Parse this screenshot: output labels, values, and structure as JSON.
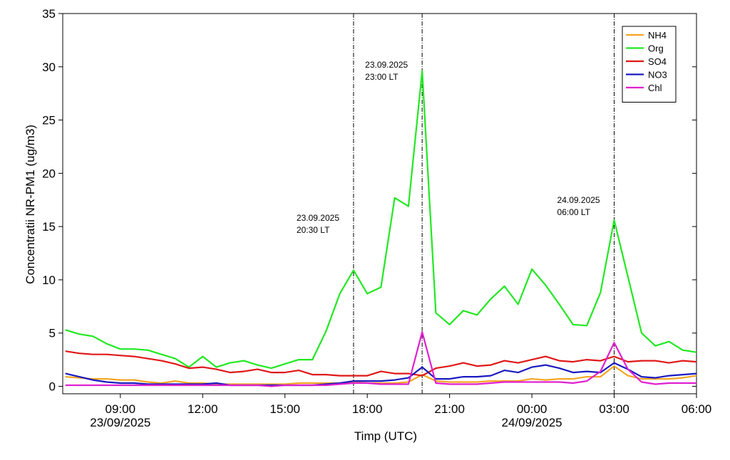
{
  "chart_data": {
    "type": "line",
    "xlabel": "Timp (UTC)",
    "ylabel": "Concentratii NR-PM1  (ug/m3)",
    "x": [
      "2025-09-23 07:00",
      "2025-09-23 07:30",
      "2025-09-23 08:00",
      "2025-09-23 08:30",
      "2025-09-23 09:00",
      "2025-09-23 09:30",
      "2025-09-23 10:00",
      "2025-09-23 10:30",
      "2025-09-23 11:00",
      "2025-09-23 11:30",
      "2025-09-23 12:00",
      "2025-09-23 12:30",
      "2025-09-23 13:00",
      "2025-09-23 13:30",
      "2025-09-23 14:00",
      "2025-09-23 14:30",
      "2025-09-23 15:00",
      "2025-09-23 15:30",
      "2025-09-23 16:00",
      "2025-09-23 16:30",
      "2025-09-23 17:00",
      "2025-09-23 17:30",
      "2025-09-23 18:00",
      "2025-09-23 18:30",
      "2025-09-23 19:00",
      "2025-09-23 19:30",
      "2025-09-23 20:00",
      "2025-09-23 20:30",
      "2025-09-23 21:00",
      "2025-09-23 21:30",
      "2025-09-23 22:00",
      "2025-09-23 22:30",
      "2025-09-23 23:00",
      "2025-09-23 23:30",
      "2025-09-24 00:00",
      "2025-09-24 00:30",
      "2025-09-24 01:00",
      "2025-09-24 01:30",
      "2025-09-24 02:00",
      "2025-09-24 02:30",
      "2025-09-24 03:00",
      "2025-09-24 03:30",
      "2025-09-24 04:00",
      "2025-09-24 04:30",
      "2025-09-24 05:00",
      "2025-09-24 05:30",
      "2025-09-24 06:00"
    ],
    "series": [
      {
        "name": "NH4",
        "color": "#f5a623",
        "values": [
          0.9,
          0.8,
          0.7,
          0.7,
          0.6,
          0.6,
          0.4,
          0.3,
          0.5,
          0.3,
          0.3,
          0.2,
          0.2,
          0.2,
          0.2,
          0.2,
          0.2,
          0.3,
          0.3,
          0.3,
          0.3,
          0.4,
          0.3,
          0.3,
          0.3,
          0.4,
          1.1,
          0.5,
          0.4,
          0.4,
          0.4,
          0.5,
          0.5,
          0.5,
          0.7,
          0.6,
          0.7,
          0.7,
          0.9,
          0.9,
          1.9,
          1.0,
          0.7,
          0.7,
          0.7,
          0.8,
          1.0
        ]
      },
      {
        "name": "Org",
        "color": "#22e822",
        "values": [
          5.3,
          4.9,
          4.7,
          4.0,
          3.5,
          3.5,
          3.4,
          3.0,
          2.6,
          1.8,
          2.8,
          1.8,
          2.2,
          2.4,
          2.0,
          1.7,
          2.1,
          2.5,
          2.5,
          5.2,
          8.7,
          10.9,
          8.7,
          9.3,
          17.7,
          16.9,
          29.6,
          6.9,
          5.8,
          7.1,
          6.7,
          8.2,
          9.4,
          7.7,
          11.0,
          9.5,
          7.7,
          5.8,
          5.7,
          8.8,
          15.6,
          10.3,
          5.0,
          3.8,
          4.2,
          3.4,
          3.2
        ]
      },
      {
        "name": "SO4",
        "color": "#e01818",
        "values": [
          3.3,
          3.1,
          3.0,
          3.0,
          2.9,
          2.8,
          2.6,
          2.4,
          2.1,
          1.7,
          1.8,
          1.6,
          1.3,
          1.4,
          1.6,
          1.3,
          1.3,
          1.5,
          1.1,
          1.1,
          1.0,
          1.0,
          1.0,
          1.4,
          1.2,
          1.2,
          1.0,
          1.7,
          1.9,
          2.2,
          1.9,
          2.0,
          2.4,
          2.2,
          2.5,
          2.8,
          2.4,
          2.3,
          2.5,
          2.4,
          2.8,
          2.3,
          2.4,
          2.4,
          2.2,
          2.4,
          2.3
        ]
      },
      {
        "name": "NO3",
        "color": "#1a1ac0",
        "values": [
          1.2,
          0.9,
          0.6,
          0.4,
          0.3,
          0.3,
          0.2,
          0.2,
          0.2,
          0.2,
          0.2,
          0.3,
          0.1,
          0.1,
          0.1,
          0.1,
          0.1,
          0.1,
          0.1,
          0.2,
          0.3,
          0.5,
          0.5,
          0.5,
          0.6,
          0.8,
          1.8,
          0.7,
          0.7,
          0.9,
          0.9,
          1.0,
          1.5,
          1.3,
          1.8,
          2.0,
          1.7,
          1.3,
          1.4,
          1.3,
          2.2,
          1.6,
          0.9,
          0.8,
          1.0,
          1.1,
          1.2
        ]
      },
      {
        "name": "Chl",
        "color": "#e020d0",
        "values": [
          0.1,
          0.1,
          0.1,
          0.1,
          0.1,
          0.1,
          0.1,
          0.1,
          0.1,
          0.1,
          0.1,
          0.1,
          0.1,
          0.1,
          0.1,
          0.0,
          0.1,
          0.1,
          0.1,
          0.1,
          0.2,
          0.3,
          0.3,
          0.2,
          0.2,
          0.2,
          5.1,
          0.3,
          0.2,
          0.2,
          0.2,
          0.3,
          0.4,
          0.4,
          0.4,
          0.4,
          0.4,
          0.3,
          0.5,
          1.4,
          4.1,
          1.6,
          0.4,
          0.2,
          0.3,
          0.3,
          0.3
        ]
      }
    ],
    "xlim": [
      "2025-09-23 06:54",
      "2025-09-24 06:00"
    ],
    "xticks": [
      {
        "value": "2025-09-23 09:00",
        "label": "09:00"
      },
      {
        "value": "2025-09-23 12:00",
        "label": "12:00"
      },
      {
        "value": "2025-09-23 15:00",
        "label": "15:00"
      },
      {
        "value": "2025-09-23 18:00",
        "label": "18:00"
      },
      {
        "value": "2025-09-23 21:00",
        "label": "21:00"
      },
      {
        "value": "2025-09-24 00:00",
        "label": "00:00"
      },
      {
        "value": "2025-09-24 03:00",
        "label": "03:00"
      },
      {
        "value": "2025-09-24 06:00",
        "label": "06:00"
      }
    ],
    "xtick_dates": [
      {
        "value": "2025-09-23 09:00",
        "label": "23/09/2025"
      },
      {
        "value": "2025-09-24 00:00",
        "label": "24/09/2025"
      }
    ],
    "ylim": [
      -0.7,
      35
    ],
    "yticks": [
      0,
      5,
      10,
      15,
      20,
      25,
      30,
      35
    ],
    "annotations": [
      {
        "x": "2025-09-23 17:30",
        "text": [
          "23.09.2025",
          "20:30 LT"
        ]
      },
      {
        "x": "2025-09-23 20:00",
        "text": [
          "23.09.2025",
          "23:00 LT"
        ]
      },
      {
        "x": "2025-09-24 03:00",
        "text": [
          "24.09.2025",
          "06:00 LT"
        ]
      }
    ],
    "legend": "upper right"
  }
}
